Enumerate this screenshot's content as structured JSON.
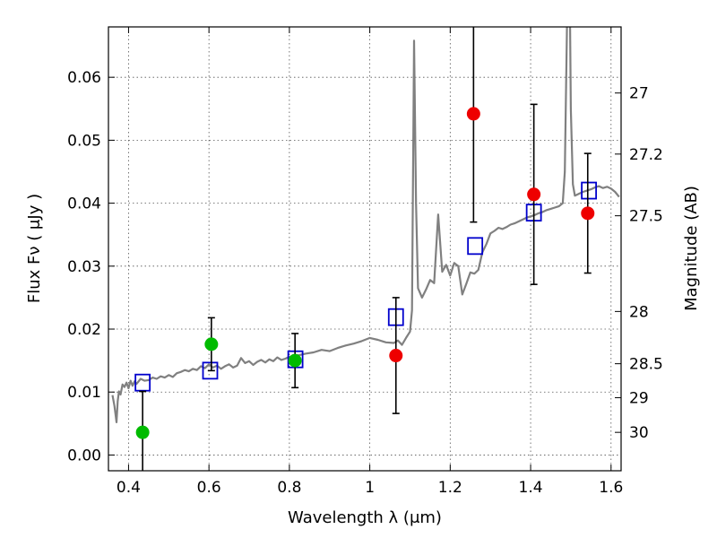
{
  "chart_data": {
    "type": "scatter",
    "xlabel": "Wavelength  λ (μm)",
    "ylabel": "Flux  Fν  ( μJy )",
    "y2label": "Magnitude (AB)",
    "xlim": [
      0.35,
      1.625
    ],
    "ylim": [
      -0.0025,
      0.068
    ],
    "grid": true,
    "x_ticks": [
      0.4,
      0.6,
      0.8,
      1.0,
      1.2,
      1.4,
      1.6
    ],
    "x_tick_labels": [
      "0.4",
      "0.6",
      "0.8",
      "1",
      "1.2",
      "1.4",
      "1.6"
    ],
    "y_ticks": [
      0.0,
      0.01,
      0.02,
      0.03,
      0.04,
      0.05,
      0.06
    ],
    "y_tick_labels": [
      "0.00",
      "0.01",
      "0.02",
      "0.03",
      "0.04",
      "0.05",
      "0.06"
    ],
    "y2_ticks": [
      {
        "flux": 0.0575,
        "label": "27"
      },
      {
        "flux": 0.0478,
        "label": "27.2"
      },
      {
        "flux": 0.038,
        "label": "27.5"
      },
      {
        "flux": 0.0228,
        "label": "28"
      },
      {
        "flux": 0.0145,
        "label": "28.5"
      },
      {
        "flux": 0.0091,
        "label": "29"
      },
      {
        "flux": 0.0036,
        "label": "30"
      }
    ],
    "colors": {
      "sed_line": "#808080",
      "model_box": "#0000cc",
      "green_points": "#00bb00",
      "red_points": "#ee0000",
      "errorbar": "#000000"
    },
    "series": [
      {
        "kind": "line",
        "color": "#808080",
        "x": [
          0.36,
          0.365,
          0.37,
          0.373,
          0.376,
          0.38,
          0.385,
          0.39,
          0.395,
          0.4,
          0.405,
          0.41,
          0.415,
          0.42,
          0.43,
          0.44,
          0.45,
          0.46,
          0.47,
          0.48,
          0.49,
          0.5,
          0.51,
          0.52,
          0.53,
          0.54,
          0.55,
          0.56,
          0.57,
          0.58,
          0.59,
          0.6,
          0.61,
          0.62,
          0.63,
          0.64,
          0.65,
          0.66,
          0.67,
          0.68,
          0.69,
          0.7,
          0.71,
          0.72,
          0.73,
          0.74,
          0.75,
          0.76,
          0.77,
          0.78,
          0.79,
          0.8,
          0.82,
          0.84,
          0.86,
          0.88,
          0.9,
          0.92,
          0.94,
          0.96,
          0.98,
          1.0,
          1.02,
          1.04,
          1.06,
          1.07,
          1.08,
          1.09,
          1.1,
          1.105,
          1.11,
          1.115,
          1.12,
          1.13,
          1.14,
          1.15,
          1.16,
          1.17,
          1.18,
          1.19,
          1.2,
          1.21,
          1.22,
          1.23,
          1.24,
          1.25,
          1.26,
          1.27,
          1.28,
          1.29,
          1.3,
          1.31,
          1.32,
          1.33,
          1.34,
          1.35,
          1.36,
          1.37,
          1.38,
          1.39,
          1.4,
          1.41,
          1.42,
          1.43,
          1.44,
          1.45,
          1.46,
          1.47,
          1.48,
          1.485,
          1.49,
          1.495,
          1.5,
          1.505,
          1.51,
          1.52,
          1.53,
          1.54,
          1.55,
          1.56,
          1.57,
          1.58,
          1.59,
          1.6,
          1.61,
          1.62
        ],
        "y": [
          0.0095,
          0.0078,
          0.0052,
          0.0085,
          0.0101,
          0.0096,
          0.0112,
          0.0108,
          0.0115,
          0.0106,
          0.0118,
          0.011,
          0.0117,
          0.0113,
          0.0121,
          0.0118,
          0.0119,
          0.0123,
          0.0121,
          0.0125,
          0.0123,
          0.0127,
          0.0124,
          0.013,
          0.0132,
          0.0135,
          0.0133,
          0.0137,
          0.0135,
          0.0141,
          0.0138,
          0.0144,
          0.0139,
          0.0142,
          0.0137,
          0.0141,
          0.0144,
          0.0139,
          0.0142,
          0.0154,
          0.0146,
          0.0149,
          0.0143,
          0.0148,
          0.0151,
          0.0147,
          0.0152,
          0.0149,
          0.0155,
          0.0151,
          0.0153,
          0.0156,
          0.0158,
          0.0161,
          0.0163,
          0.0167,
          0.0165,
          0.017,
          0.0174,
          0.0177,
          0.0181,
          0.0186,
          0.0183,
          0.0179,
          0.0178,
          0.0182,
          0.0175,
          0.0186,
          0.0196,
          0.023,
          0.0658,
          0.04,
          0.0265,
          0.025,
          0.0263,
          0.0278,
          0.0273,
          0.0382,
          0.0291,
          0.0302,
          0.0285,
          0.0305,
          0.03,
          0.0255,
          0.0272,
          0.029,
          0.0288,
          0.0294,
          0.0322,
          0.0335,
          0.0352,
          0.0356,
          0.0361,
          0.0359,
          0.0362,
          0.0366,
          0.0368,
          0.0371,
          0.0374,
          0.0377,
          0.0379,
          0.0381,
          0.0384,
          0.0386,
          0.0389,
          0.0391,
          0.0393,
          0.0395,
          0.04,
          0.045,
          0.066,
          0.09,
          0.055,
          0.043,
          0.0412,
          0.0415,
          0.0418,
          0.042,
          0.0422,
          0.0425,
          0.0427,
          0.0424,
          0.0426,
          0.0423,
          0.0418,
          0.041
        ]
      },
      {
        "kind": "model-boxes",
        "color": "#0000cc",
        "x": [
          0.435,
          0.603,
          0.815,
          1.065,
          1.262,
          1.408,
          1.545
        ],
        "y": [
          0.0115,
          0.0134,
          0.0152,
          0.0219,
          0.0332,
          0.0385,
          0.042
        ]
      },
      {
        "kind": "observed",
        "color": "#00bb00",
        "x": [
          0.435,
          0.606,
          0.814
        ],
        "y": [
          0.0036,
          0.0176,
          0.015
        ],
        "err": [
          0.0065,
          0.0042,
          0.0043
        ]
      },
      {
        "kind": "observed",
        "color": "#ee0000",
        "x": [
          1.065,
          1.258,
          1.408,
          1.542
        ],
        "y": [
          0.0158,
          0.0542,
          0.0414,
          0.0384
        ],
        "err": [
          0.0092,
          0.0172,
          0.0143,
          0.0095
        ]
      }
    ]
  }
}
